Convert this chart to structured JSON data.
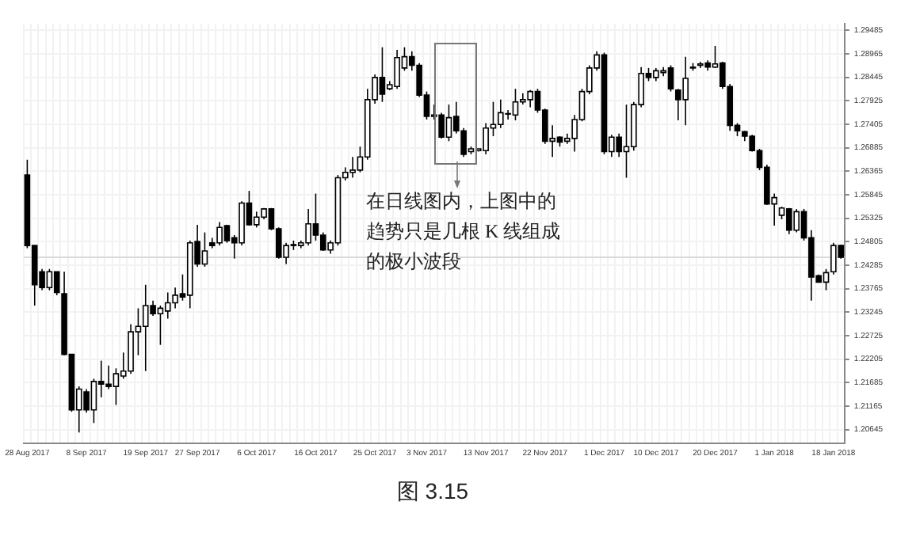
{
  "chart_data": {
    "type": "candlestick",
    "title": "图 3.15",
    "categories": [
      "28 Aug 2017",
      null,
      null,
      null,
      null,
      null,
      null,
      null,
      "8 Sep 2017",
      null,
      null,
      null,
      null,
      null,
      null,
      null,
      "19 Sep 2017",
      null,
      null,
      null,
      null,
      null,
      null,
      "27 Sep 2017",
      null,
      null,
      null,
      null,
      null,
      null,
      null,
      "6 Oct 2017",
      null,
      null,
      null,
      null,
      null,
      null,
      null,
      "16 Oct 2017",
      null,
      null,
      null,
      null,
      null,
      null,
      null,
      "25 Oct 2017",
      null,
      null,
      null,
      null,
      null,
      null,
      "3 Nov 2017",
      null,
      null,
      null,
      null,
      null,
      null,
      null,
      "13 Nov 2017",
      null,
      null,
      null,
      null,
      null,
      null,
      null,
      "22 Nov 2017",
      null,
      null,
      null,
      null,
      null,
      null,
      null,
      "1 Dec 2017",
      null,
      null,
      null,
      null,
      null,
      null,
      "10 Dec 2017",
      null,
      null,
      null,
      null,
      null,
      null,
      null,
      "20 Dec 2017",
      null,
      null,
      null,
      null,
      null,
      null,
      null,
      "1 Jan 2018",
      null,
      null,
      null,
      null,
      null,
      null,
      null,
      "18 Jan 2018",
      null
    ],
    "ohlc": [
      [
        1.2628,
        1.2662,
        1.2466,
        1.2472
      ],
      [
        1.2472,
        1.2472,
        1.2339,
        1.2385
      ],
      [
        1.2414,
        1.242,
        1.2373,
        1.2379
      ],
      [
        1.2379,
        1.242,
        1.2373,
        1.2414
      ],
      [
        1.2414,
        1.2414,
        1.2362,
        1.2368
      ],
      [
        1.2365,
        1.2414,
        1.2229,
        1.2231
      ],
      [
        1.2231,
        1.2231,
        1.2104,
        1.2108
      ],
      [
        1.2108,
        1.216,
        1.2058,
        1.2154
      ],
      [
        1.2148,
        1.2154,
        1.2102,
        1.2108
      ],
      [
        1.2108,
        1.2177,
        1.2079,
        1.2171
      ],
      [
        1.2171,
        1.2217,
        1.2136,
        1.2165
      ],
      [
        1.2165,
        1.2206,
        1.2154,
        1.216
      ],
      [
        1.216,
        1.22,
        1.2119,
        1.2188
      ],
      [
        1.2183,
        1.2235,
        1.2177,
        1.2194
      ],
      [
        1.2194,
        1.2298,
        1.2188,
        1.2281
      ],
      [
        1.2281,
        1.2333,
        1.2229,
        1.2293
      ],
      [
        1.2293,
        1.2385,
        1.2194,
        1.2339
      ],
      [
        1.2339,
        1.235,
        1.2316,
        1.2321
      ],
      [
        1.2321,
        1.2339,
        1.2252,
        1.2333
      ],
      [
        1.2327,
        1.2368,
        1.231,
        1.2345
      ],
      [
        1.2345,
        1.2379,
        1.2333,
        1.2362
      ],
      [
        1.2365,
        1.2408,
        1.235,
        1.2358
      ],
      [
        1.2362,
        1.2483,
        1.2333,
        1.2478
      ],
      [
        1.2481,
        1.2518,
        1.2425,
        1.2431
      ],
      [
        1.2431,
        1.2501,
        1.2425,
        1.246
      ],
      [
        1.2478,
        1.2489,
        1.2466,
        1.2472
      ],
      [
        1.2478,
        1.2524,
        1.2472,
        1.2512
      ],
      [
        1.2516,
        1.2518,
        1.2478,
        1.2483
      ],
      [
        1.2489,
        1.2495,
        1.2443,
        1.2478
      ],
      [
        1.2478,
        1.257,
        1.2472,
        1.2566
      ],
      [
        1.2566,
        1.2593,
        1.2516,
        1.2518
      ],
      [
        1.2518,
        1.2547,
        1.2512,
        1.2535
      ],
      [
        1.2535,
        1.2555,
        1.253,
        1.2553
      ],
      [
        1.2553,
        1.2555,
        1.2506,
        1.2509
      ],
      [
        1.2509,
        1.2512,
        1.2443,
        1.2446
      ],
      [
        1.2446,
        1.2478,
        1.2431,
        1.2472
      ],
      [
        1.2472,
        1.2483,
        1.2462,
        1.2474
      ],
      [
        1.2472,
        1.2483,
        1.2466,
        1.2478
      ],
      [
        1.2478,
        1.2553,
        1.2472,
        1.252
      ],
      [
        1.252,
        1.2587,
        1.2483,
        1.2495
      ],
      [
        1.2495,
        1.2501,
        1.246,
        1.2462
      ],
      [
        1.2462,
        1.2483,
        1.2454,
        1.2478
      ],
      [
        1.2478,
        1.2628,
        1.2472,
        1.2622
      ],
      [
        1.2622,
        1.2645,
        1.2616,
        1.2634
      ],
      [
        1.2634,
        1.2668,
        1.2622,
        1.2639
      ],
      [
        1.2639,
        1.2691,
        1.2634,
        1.2668
      ],
      [
        1.2668,
        1.2819,
        1.2662,
        1.2795
      ],
      [
        1.2795,
        1.2851,
        1.2786,
        1.2844
      ],
      [
        1.2844,
        1.2911,
        1.279,
        1.2807
      ],
      [
        1.2819,
        1.2836,
        1.2816,
        1.2828
      ],
      [
        1.2824,
        1.2905,
        1.2819,
        1.2888
      ],
      [
        1.2865,
        1.2911,
        1.2859,
        1.289
      ],
      [
        1.289,
        1.2902,
        1.2859,
        1.2871
      ],
      [
        1.2871,
        1.2876,
        1.2801,
        1.2805
      ],
      [
        1.2805,
        1.2813,
        1.2751,
        1.2758
      ],
      [
        1.2758,
        1.2784,
        1.2751,
        1.2761
      ],
      [
        1.2761,
        1.2766,
        1.2709,
        1.2712
      ],
      [
        1.2712,
        1.2784,
        1.2703,
        1.2755
      ],
      [
        1.2758,
        1.279,
        1.272,
        1.2726
      ],
      [
        1.2726,
        1.2732,
        1.2668,
        1.2674
      ],
      [
        1.268,
        1.2691,
        1.2674,
        1.2686
      ],
      [
        1.2682,
        1.2686,
        1.268,
        1.2686
      ],
      [
        1.2682,
        1.2743,
        1.2674,
        1.2732
      ],
      [
        1.2732,
        1.279,
        1.2714,
        1.274
      ],
      [
        1.274,
        1.2795,
        1.2732,
        1.2766
      ],
      [
        1.2763,
        1.2772,
        1.2751,
        1.2764
      ],
      [
        1.2761,
        1.2819,
        1.2749,
        1.279
      ],
      [
        1.279,
        1.2809,
        1.2784,
        1.2795
      ],
      [
        1.2795,
        1.2816,
        1.2778,
        1.2813
      ],
      [
        1.2813,
        1.2819,
        1.2766,
        1.2772
      ],
      [
        1.2772,
        1.2775,
        1.2697,
        1.2703
      ],
      [
        1.2703,
        1.2738,
        1.2668,
        1.2709
      ],
      [
        1.2712,
        1.2714,
        1.2691,
        1.2701
      ],
      [
        1.2703,
        1.272,
        1.2697,
        1.2709
      ],
      [
        1.2709,
        1.2761,
        1.268,
        1.2751
      ],
      [
        1.2751,
        1.2819,
        1.2747,
        1.2813
      ],
      [
        1.2813,
        1.2871,
        1.2807,
        1.2865
      ],
      [
        1.2865,
        1.2902,
        1.2859,
        1.2894
      ],
      [
        1.2894,
        1.2899,
        1.2674,
        1.268
      ],
      [
        1.268,
        1.2717,
        1.2668,
        1.2712
      ],
      [
        1.2712,
        1.272,
        1.2668,
        1.268
      ],
      [
        1.268,
        1.2784,
        1.2622,
        1.2691
      ],
      [
        1.2691,
        1.279,
        1.2682,
        1.2784
      ],
      [
        1.2784,
        1.2867,
        1.2778,
        1.2853
      ],
      [
        1.2853,
        1.2865,
        1.2836,
        1.2844
      ],
      [
        1.2844,
        1.2865,
        1.2836,
        1.2859
      ],
      [
        1.2855,
        1.2867,
        1.2847,
        1.2859
      ],
      [
        1.2865,
        1.2871,
        1.2813,
        1.2819
      ],
      [
        1.2816,
        1.2819,
        1.2749,
        1.2795
      ],
      [
        1.2795,
        1.289,
        1.2738,
        1.2842
      ],
      [
        1.2865,
        1.2876,
        1.2859,
        1.2867
      ],
      [
        1.2871,
        1.2879,
        1.2865,
        1.2874
      ],
      [
        1.2876,
        1.2882,
        1.2859,
        1.2867
      ],
      [
        1.2867,
        1.2914,
        1.2865,
        1.2874
      ],
      [
        1.2876,
        1.2879,
        1.2819,
        1.2824
      ],
      [
        1.2824,
        1.283,
        1.2726,
        1.2738
      ],
      [
        1.2738,
        1.2743,
        1.2714,
        1.2726
      ],
      [
        1.2724,
        1.2726,
        1.2703,
        1.2714
      ],
      [
        1.2714,
        1.2717,
        1.268,
        1.2682
      ],
      [
        1.2682,
        1.2686,
        1.2639,
        1.2645
      ],
      [
        1.2645,
        1.2651,
        1.2562,
        1.2564
      ],
      [
        1.2564,
        1.2587,
        1.2516,
        1.2578
      ],
      [
        1.2539,
        1.2558,
        1.253,
        1.2555
      ],
      [
        1.2553,
        1.2555,
        1.2497,
        1.2506
      ],
      [
        1.2506,
        1.2553,
        1.2501,
        1.2547
      ],
      [
        1.2547,
        1.2553,
        1.2483,
        1.2489
      ],
      [
        1.2489,
        1.2506,
        1.235,
        1.2402
      ],
      [
        1.2405,
        1.2408,
        1.2391,
        1.2391
      ],
      [
        1.2391,
        1.242,
        1.2373,
        1.2412
      ],
      [
        1.2414,
        1.2478,
        1.2408,
        1.2472
      ],
      [
        1.2472,
        1.2474,
        1.2443,
        1.2446
      ]
    ],
    "ylim": [
      1.2034,
      1.2963
    ],
    "yticks": [
      1.29485,
      1.28965,
      1.28445,
      1.27925,
      1.27405,
      1.26885,
      1.26365,
      1.25845,
      1.25325,
      1.24805,
      1.24285,
      1.23765,
      1.23245,
      1.22725,
      1.22205,
      1.21685,
      1.21165,
      1.20645
    ],
    "ref_lines": [
      {
        "axis": "y",
        "value": 1.2446,
        "color": "#d9d9d9"
      }
    ],
    "annotations": [
      "在日线图内，上图中的趋势只是几根 K 线组成的极小波段"
    ],
    "grid": true,
    "legend": false
  }
}
